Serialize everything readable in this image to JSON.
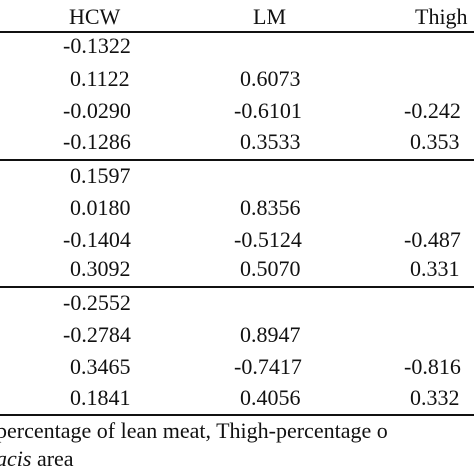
{
  "table": {
    "headers": [
      "HCW",
      "LM",
      "Thigh"
    ],
    "groups": [
      {
        "rows": [
          {
            "hcw": "-0.1322",
            "lm": "",
            "thigh": ""
          },
          {
            "hcw": "0.1122",
            "lm": "0.6073",
            "thigh": ""
          },
          {
            "hcw": "-0.0290",
            "lm": "-0.6101",
            "thigh": "-0.242"
          },
          {
            "hcw": "-0.1286",
            "lm": "0.3533",
            "thigh": "0.353"
          }
        ]
      },
      {
        "rows": [
          {
            "hcw": "0.1597",
            "lm": "",
            "thigh": ""
          },
          {
            "hcw": "0.0180",
            "lm": "0.8356",
            "thigh": ""
          },
          {
            "hcw": "-0.1404",
            "lm": "-0.5124",
            "thigh": "-0.487"
          },
          {
            "hcw": "0.3092",
            "lm": "0.5070",
            "thigh": "0.331"
          }
        ]
      },
      {
        "rows": [
          {
            "hcw": "-0.2552",
            "lm": "",
            "thigh": ""
          },
          {
            "hcw": "-0.2784",
            "lm": "0.8947",
            "thigh": ""
          },
          {
            "hcw": "0.3465",
            "lm": "-0.7417",
            "thigh": "-0.816"
          },
          {
            "hcw": "0.1841",
            "lm": "0.4056",
            "thigh": "0.332"
          }
        ]
      }
    ]
  },
  "footnote": {
    "line1": "percentage of lean meat, Thigh-percentage o",
    "line2_italic": "acis",
    "line2_rest": " area"
  }
}
